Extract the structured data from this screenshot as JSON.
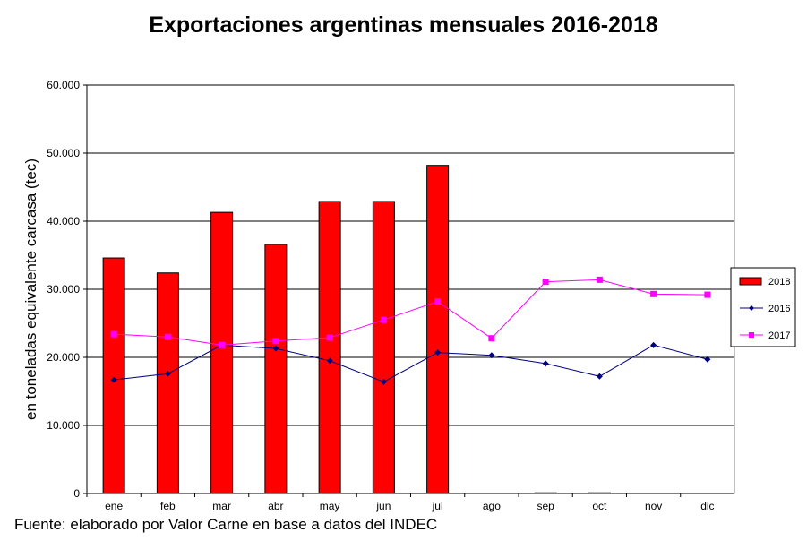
{
  "chart_data": {
    "type": "bar",
    "title": "Exportaciones argentinas mensuales 2016-2018",
    "xlabel": "",
    "ylabel": "en toneladas equivalente carcasa (tec)",
    "source": "Fuente: elaborado por  Valor Carne en base a datos del INDEC",
    "ylim": [
      0,
      60000
    ],
    "yticks": [
      0,
      10000,
      20000,
      30000,
      40000,
      50000,
      60000
    ],
    "ytick_labels": [
      "0",
      "10.000",
      "20.000",
      "30.000",
      "40.000",
      "50.000",
      "60.000"
    ],
    "categories": [
      "ene",
      "feb",
      "mar",
      "abr",
      "may",
      "jun",
      "jul",
      "ago",
      "sep",
      "oct",
      "nov",
      "dic"
    ],
    "grid": true,
    "legend_position": "right",
    "series": [
      {
        "name": "2018",
        "kind": "bar",
        "color": "#ff0000",
        "values": [
          34600,
          32400,
          41300,
          36600,
          42900,
          42900,
          48200,
          null,
          100,
          100,
          null,
          null
        ]
      },
      {
        "name": "2016",
        "kind": "line",
        "color": "#000080",
        "marker": "diamond",
        "values": [
          16700,
          17600,
          21800,
          21300,
          19500,
          16400,
          20700,
          20300,
          19100,
          17200,
          21800,
          19700
        ]
      },
      {
        "name": "2017",
        "kind": "line",
        "color": "#ff00ff",
        "marker": "square",
        "values": [
          23400,
          23000,
          21800,
          22400,
          22900,
          25500,
          28200,
          22800,
          31100,
          31400,
          29300,
          29200
        ]
      }
    ]
  }
}
